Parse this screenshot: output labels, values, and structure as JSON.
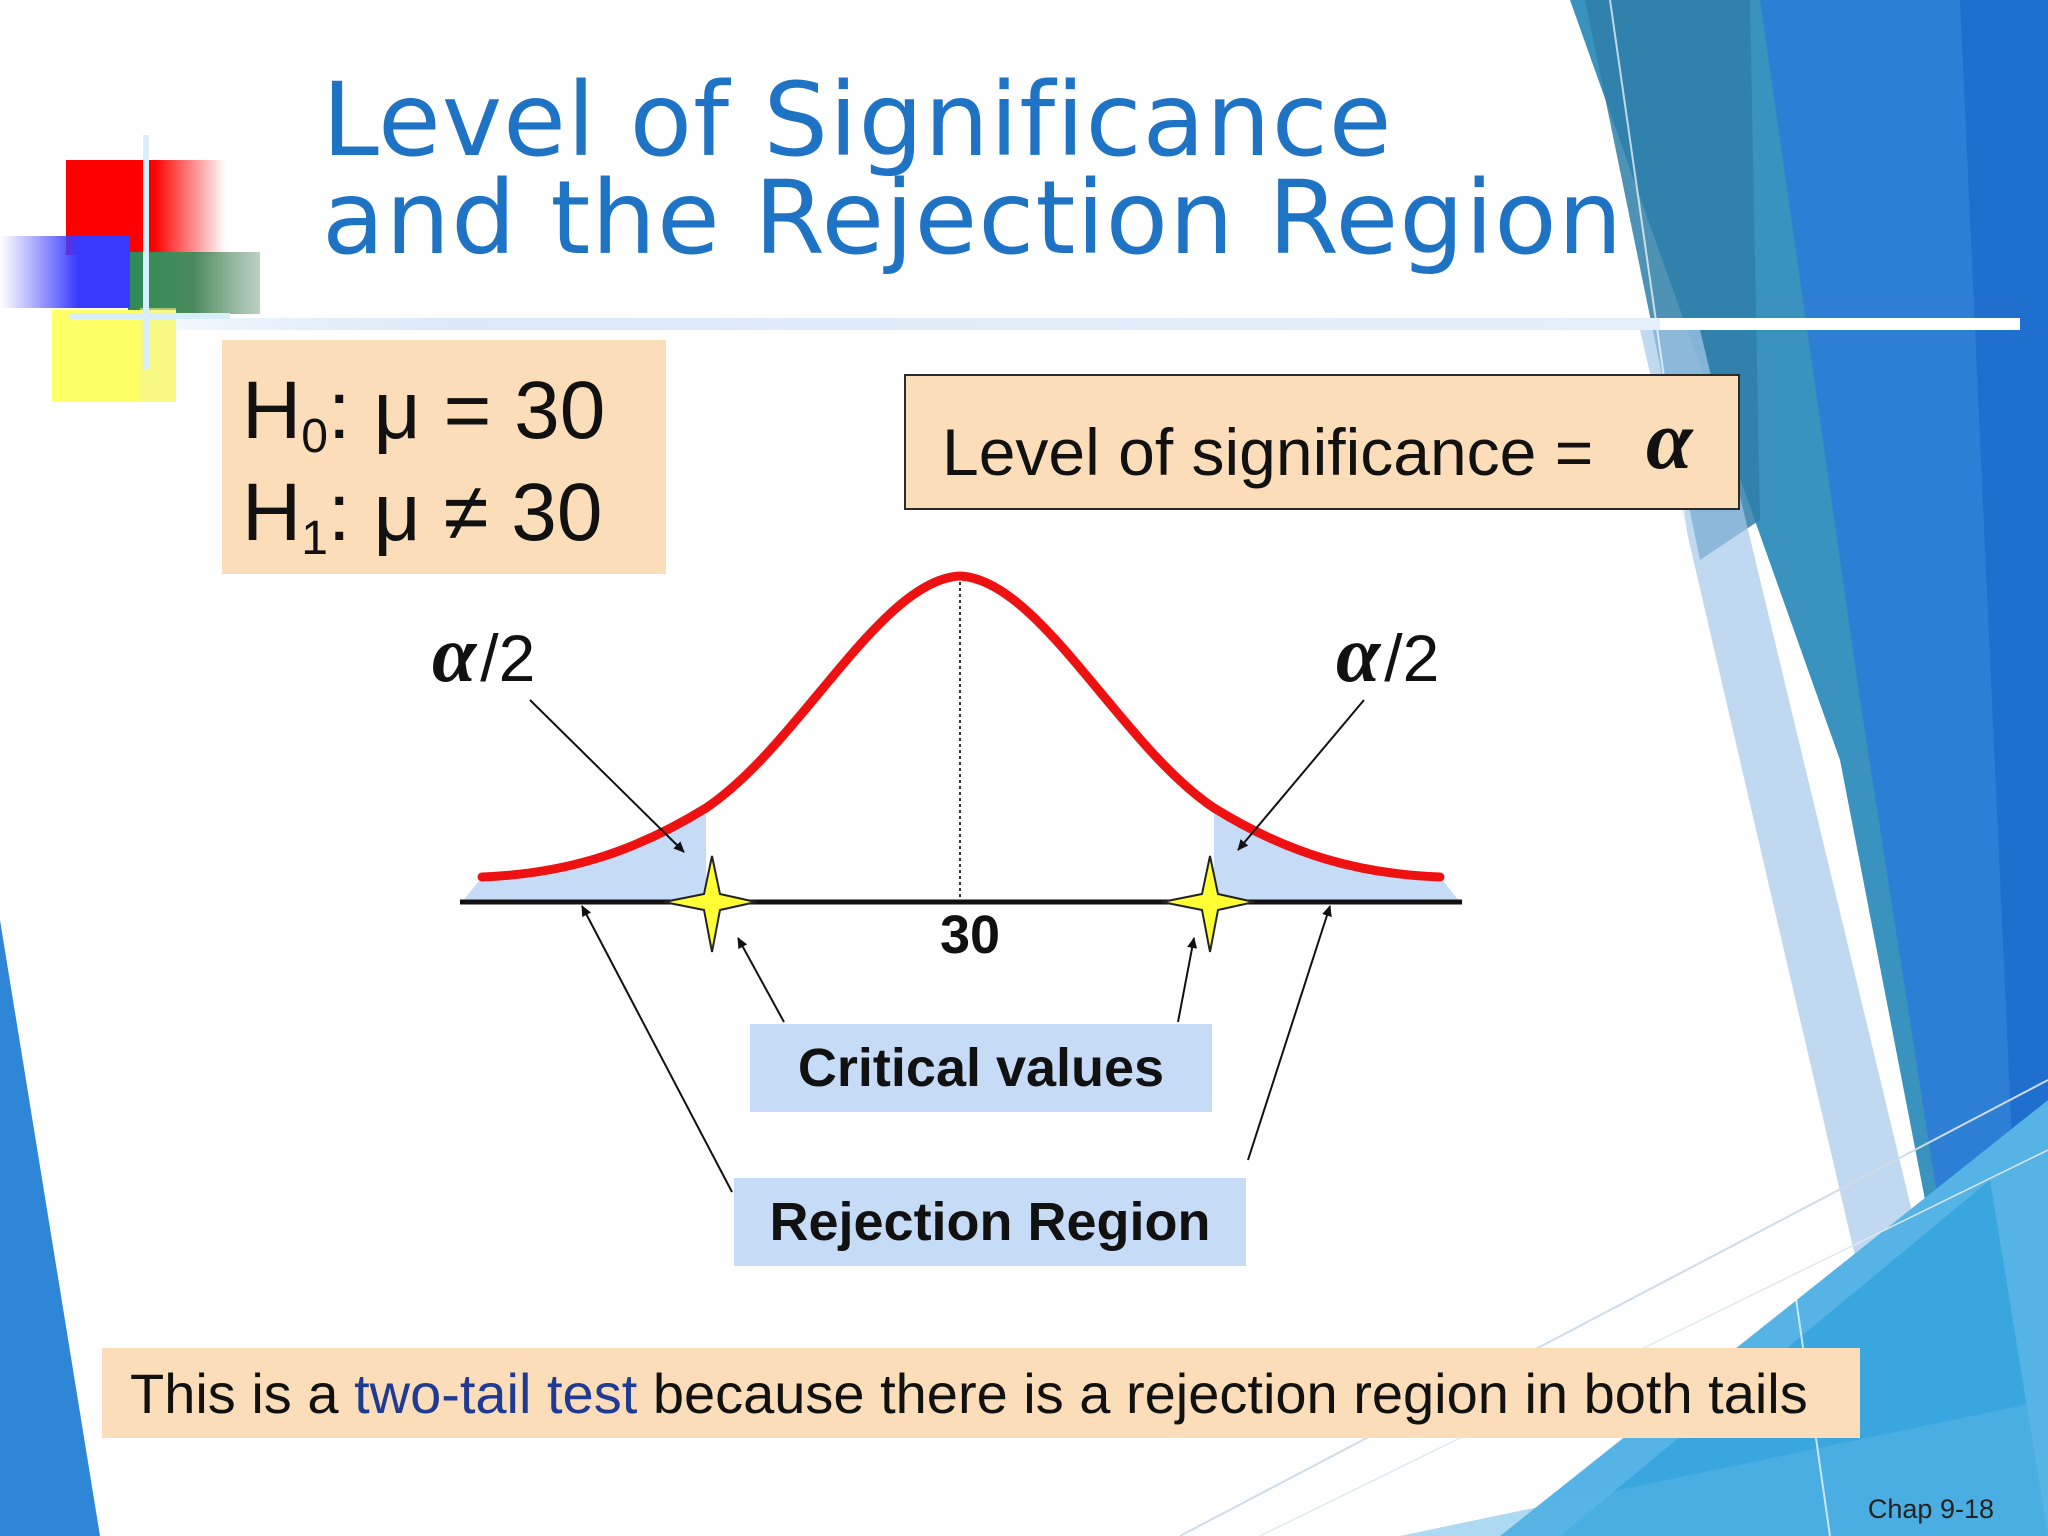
{
  "slide": {
    "title_line1": "Level of Significance",
    "title_line2": "and the Rejection Region",
    "page_label": "Chap 9-18"
  },
  "hypotheses": {
    "h0_symbol": "H",
    "h0_sub": "0",
    "h0_rest": ": μ = 30",
    "h1_symbol": "H",
    "h1_sub": "1",
    "h1_rest": ": μ ≠ 30"
  },
  "significance": {
    "label": "Level of significance = ",
    "symbol": "α"
  },
  "diagram": {
    "left_tail_symbol": "α",
    "left_tail_fraction": "/2",
    "right_tail_symbol": "α",
    "right_tail_fraction": "/2",
    "mean_label": "30",
    "critical_values_label": "Critical values",
    "rejection_region_label": "Rejection Region"
  },
  "footer_note": {
    "prefix": "This is a ",
    "highlight": "two-tail test",
    "suffix": " because there is a rejection region in both tails"
  },
  "colors": {
    "title": "#1f73c4",
    "curve": "#ee1111",
    "tail_fill": "#c6dcf6",
    "box_peach": "#fbddb9",
    "label_blue_box": "#c6dcf6",
    "star": "#ffff33",
    "highlight_text": "#1f3a93"
  }
}
